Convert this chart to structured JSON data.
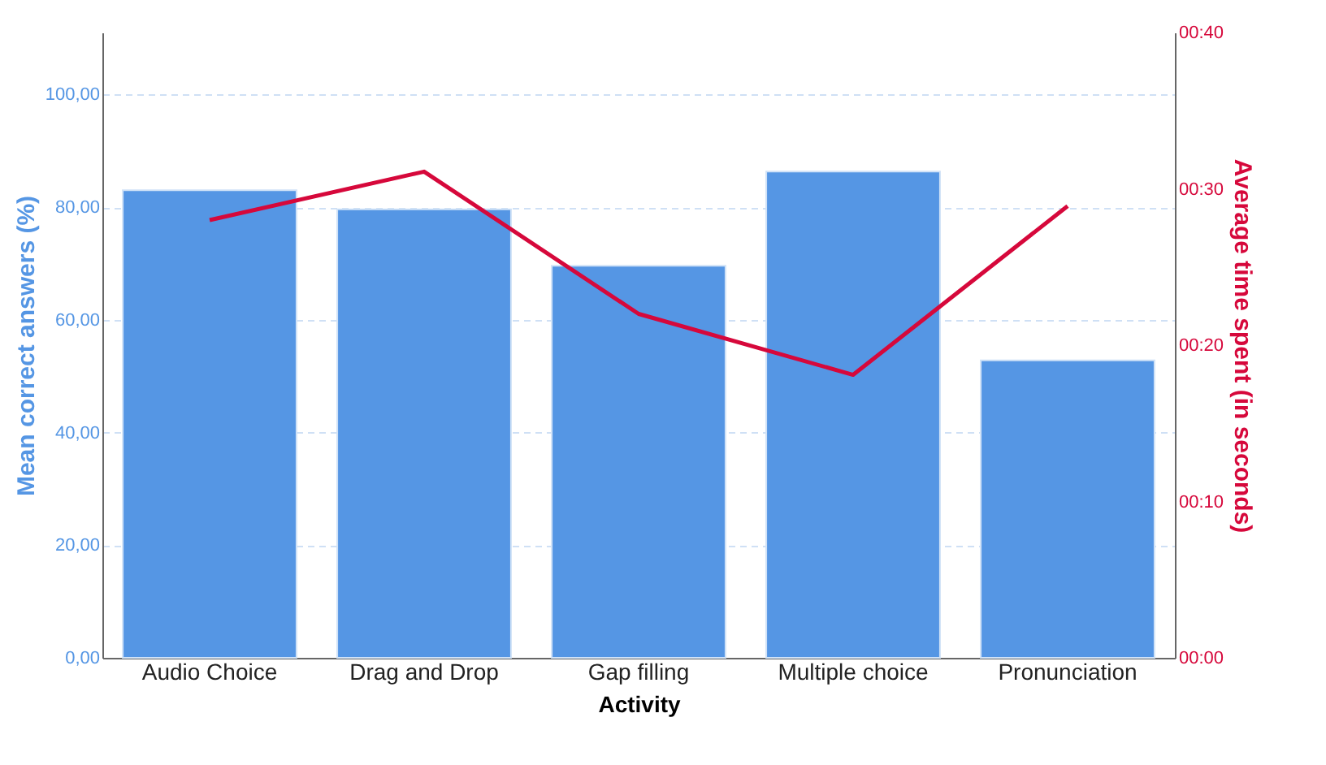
{
  "chart_data": {
    "type": "bar",
    "xlabel": "Activity",
    "ylabel": "Mean correct answers (%)",
    "y2label": "Average time spent (in seconds)",
    "categories": [
      "Audio Choice",
      "Drag and Drop",
      "Gap filling",
      "Multiple choice",
      "Pronunciation"
    ],
    "series": [
      {
        "color": "#5596e4",
        "values": [
          83.0,
          79.6,
          69.6,
          86.3,
          52.8
        ]
      },
      {
        "type": "line",
        "color": "#d6083b",
        "axis": "y2",
        "values": [
          28.0,
          31.1,
          22.0,
          18.1,
          28.9
        ]
      }
    ],
    "ylim": [
      0,
      111
    ],
    "yticks": [
      {
        "value": 0,
        "label": "0,00"
      },
      {
        "value": 20,
        "label": "20,00"
      },
      {
        "value": 40,
        "label": "40,00"
      },
      {
        "value": 60,
        "label": "60,00"
      },
      {
        "value": 80,
        "label": "80,00"
      },
      {
        "value": 100,
        "label": "100,00"
      }
    ],
    "y2lim": [
      0,
      40
    ],
    "y2ticks": [
      {
        "value": 0,
        "label": "00:00"
      },
      {
        "value": 10,
        "label": "00:10"
      },
      {
        "value": 20,
        "label": "00:20"
      },
      {
        "value": 30,
        "label": "00:30"
      },
      {
        "value": 40,
        "label": "00:40"
      }
    ],
    "grid": "y",
    "marker": "none",
    "line_style": "solid"
  }
}
